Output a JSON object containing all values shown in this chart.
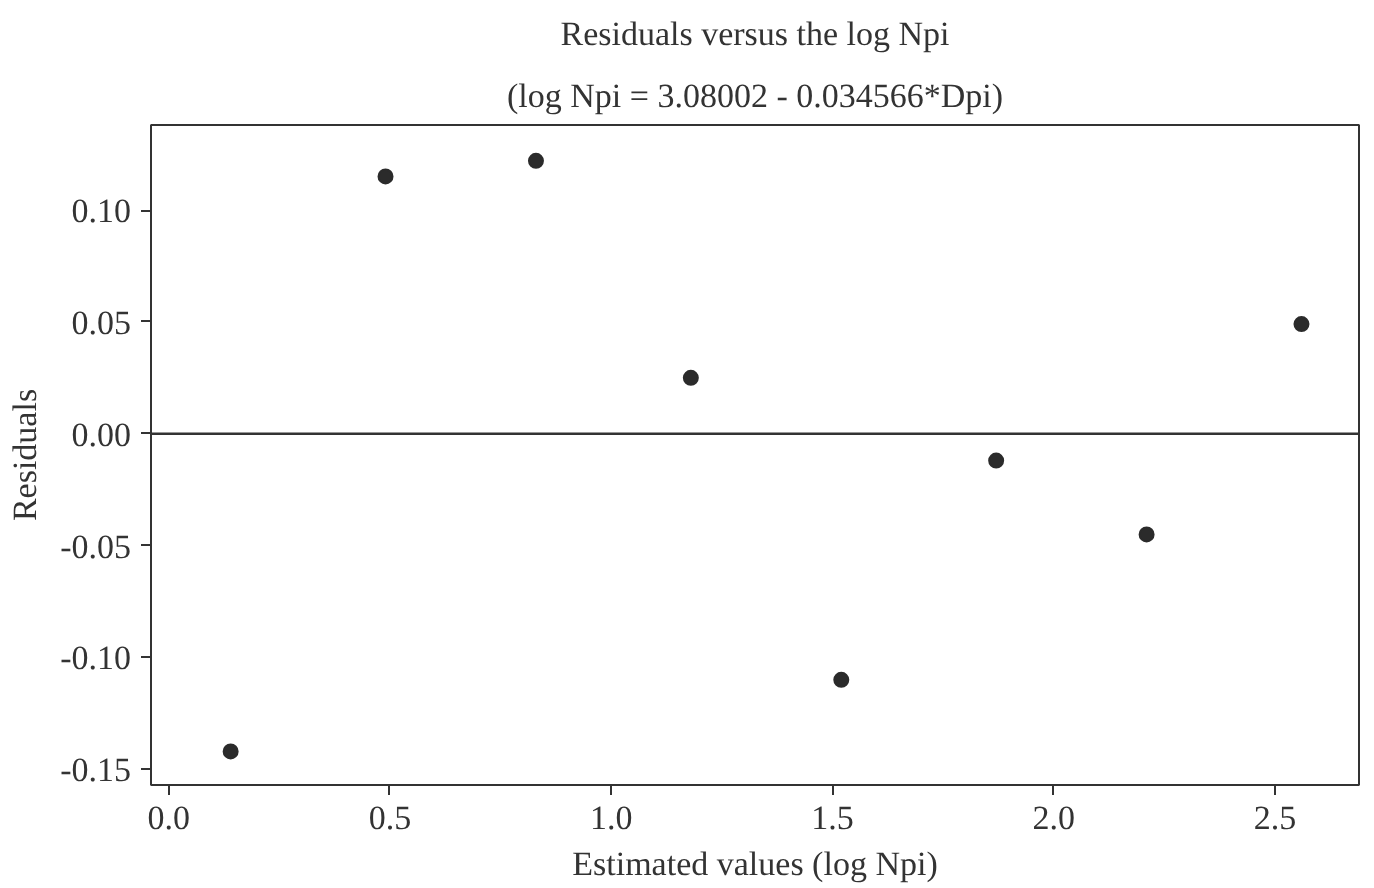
{
  "chart_data": {
    "type": "scatter",
    "title": "Residuals versus the log Npi",
    "subtitle": "(log Npi = 3.08002 - 0.034566*Dpi)",
    "xlabel": "Estimated values (log Npi)",
    "ylabel": "Residuals",
    "x": [
      0.14,
      0.49,
      0.83,
      1.18,
      1.52,
      1.87,
      2.21,
      2.56
    ],
    "series": [
      {
        "color": "#2b2b2b",
        "values": [
          -0.142,
          0.115,
          0.122,
          0.025,
          -0.11,
          -0.012,
          -0.045,
          0.049
        ]
      }
    ],
    "xlim": [
      -0.04,
      2.69
    ],
    "ylim": [
      -0.157,
      0.138
    ],
    "xticks": [
      {
        "value": 0,
        "label": "0.0"
      },
      0.5,
      {
        "value": 1,
        "label": "1.0"
      },
      1.5,
      {
        "value": 2,
        "label": "2.0"
      },
      2.5
    ],
    "yticks": [
      {
        "value": -0.15,
        "label": "-0.15"
      },
      {
        "value": -0.1,
        "label": "-0.10"
      },
      {
        "value": -0.05,
        "label": "-0.05"
      },
      {
        "value": 0,
        "label": "0.00"
      },
      {
        "value": 0.05,
        "label": "0.05"
      },
      {
        "value": 0.1,
        "label": "0.10"
      }
    ],
    "ref_lines": [
      {
        "axis": "y",
        "value": 0,
        "color": "#333333"
      }
    ],
    "marker": "circle",
    "grid": false
  }
}
